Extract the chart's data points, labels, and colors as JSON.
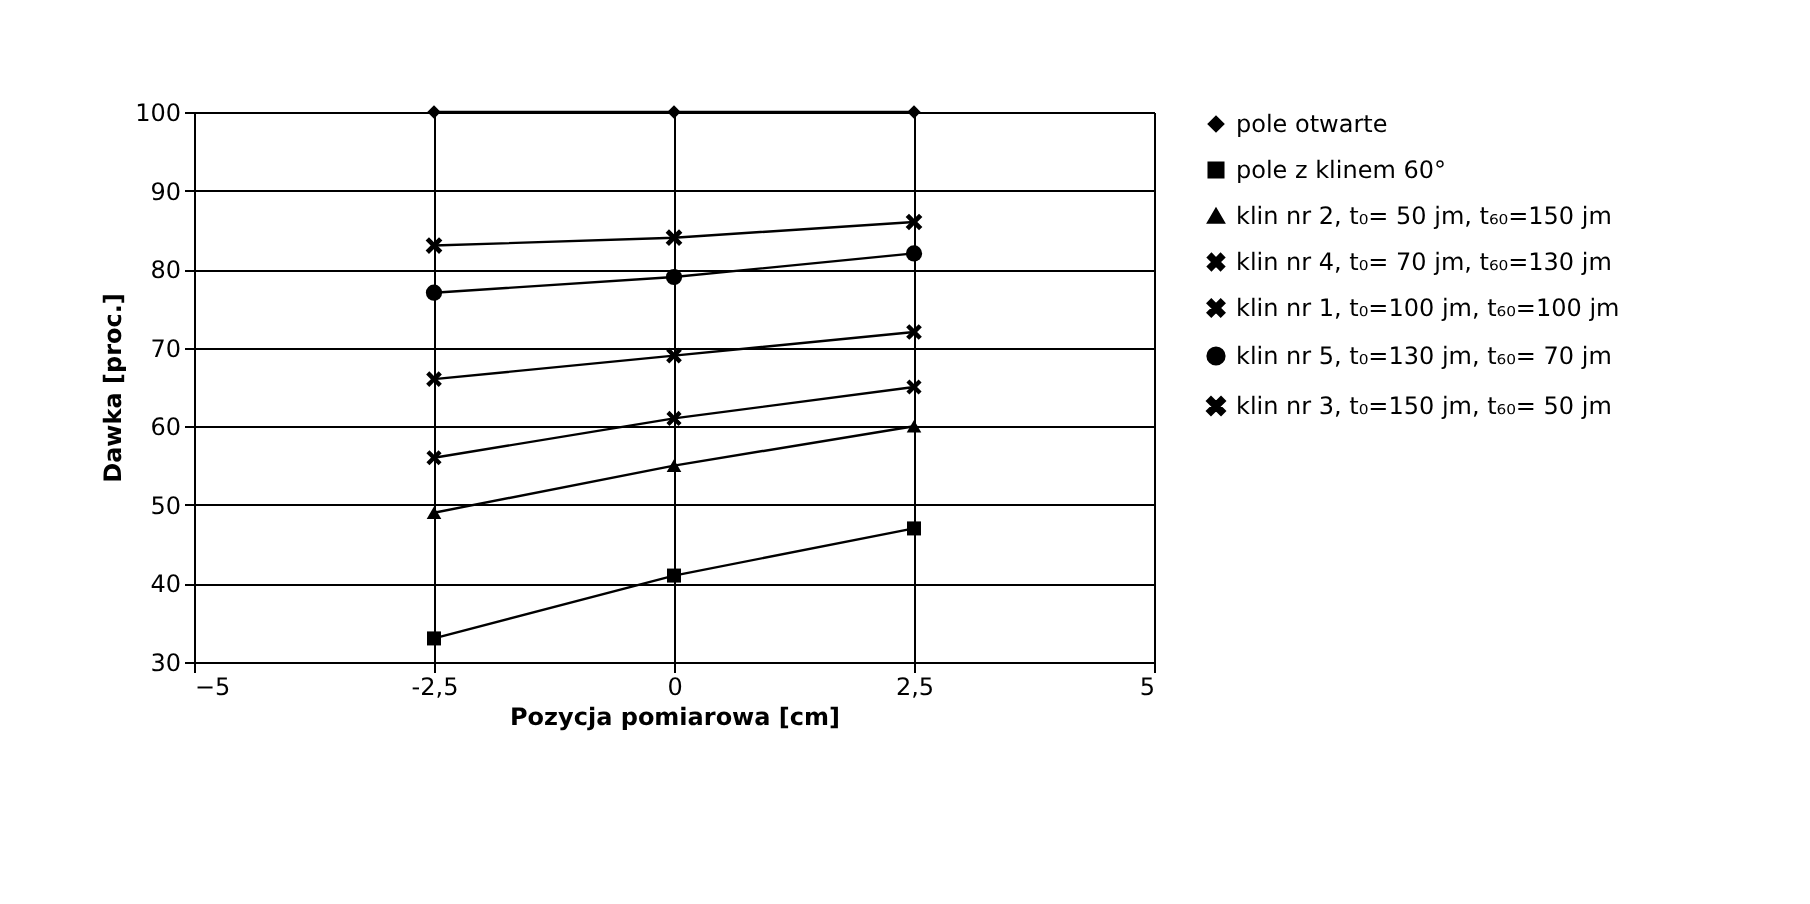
{
  "chart_data": {
    "type": "line",
    "xlabel": "Pozycja pomiarowa [cm]",
    "ylabel": "Dawka [proc.]",
    "x": [
      -2.5,
      0,
      2.5
    ],
    "xlim": [
      -5,
      5
    ],
    "xticks": [
      -5,
      {
        "value": -2.5,
        "label": "-2,5"
      },
      0,
      {
        "value": 2.5,
        "label": "2,5"
      },
      5
    ],
    "ylim": [
      30,
      100
    ],
    "yticks": [
      30,
      40,
      50,
      60,
      70,
      80,
      90,
      100
    ],
    "grid": true,
    "legend": "right",
    "line_style": "solid",
    "series": [
      {
        "name": "pole otwarte",
        "color": "#000000",
        "marker": "diamond",
        "values": [
          100,
          100,
          100
        ]
      },
      {
        "name": "pole z klinem 60°",
        "color": "#000000",
        "marker": "square",
        "values": [
          33,
          41,
          47
        ]
      },
      {
        "name": "klin nr 2, t₀= 50 jm, t₆₀=150 jm",
        "color": "#000000",
        "marker": "triangle",
        "values": [
          49,
          55,
          60
        ]
      },
      {
        "name": "klin nr 4, t₀= 70 jm, t₆₀=130 jm",
        "color": "#000000",
        "marker": "cross",
        "values": [
          56,
          61,
          65
        ]
      },
      {
        "name": "klin nr 1, t₀=100 jm, t₆₀=100 jm",
        "color": "#000000",
        "marker": "cross",
        "values": [
          66,
          69,
          72
        ]
      },
      {
        "name": "klin nr 5, t₀=130 jm, t₆₀= 70 jm",
        "color": "#000000",
        "marker": "circle",
        "values": [
          77,
          79,
          82
        ]
      },
      {
        "name": "klin nr 3, t₀=150 jm, t₆₀= 50 jm",
        "color": "#000000",
        "marker": "cross",
        "values": [
          83,
          84,
          86
        ]
      }
    ]
  }
}
